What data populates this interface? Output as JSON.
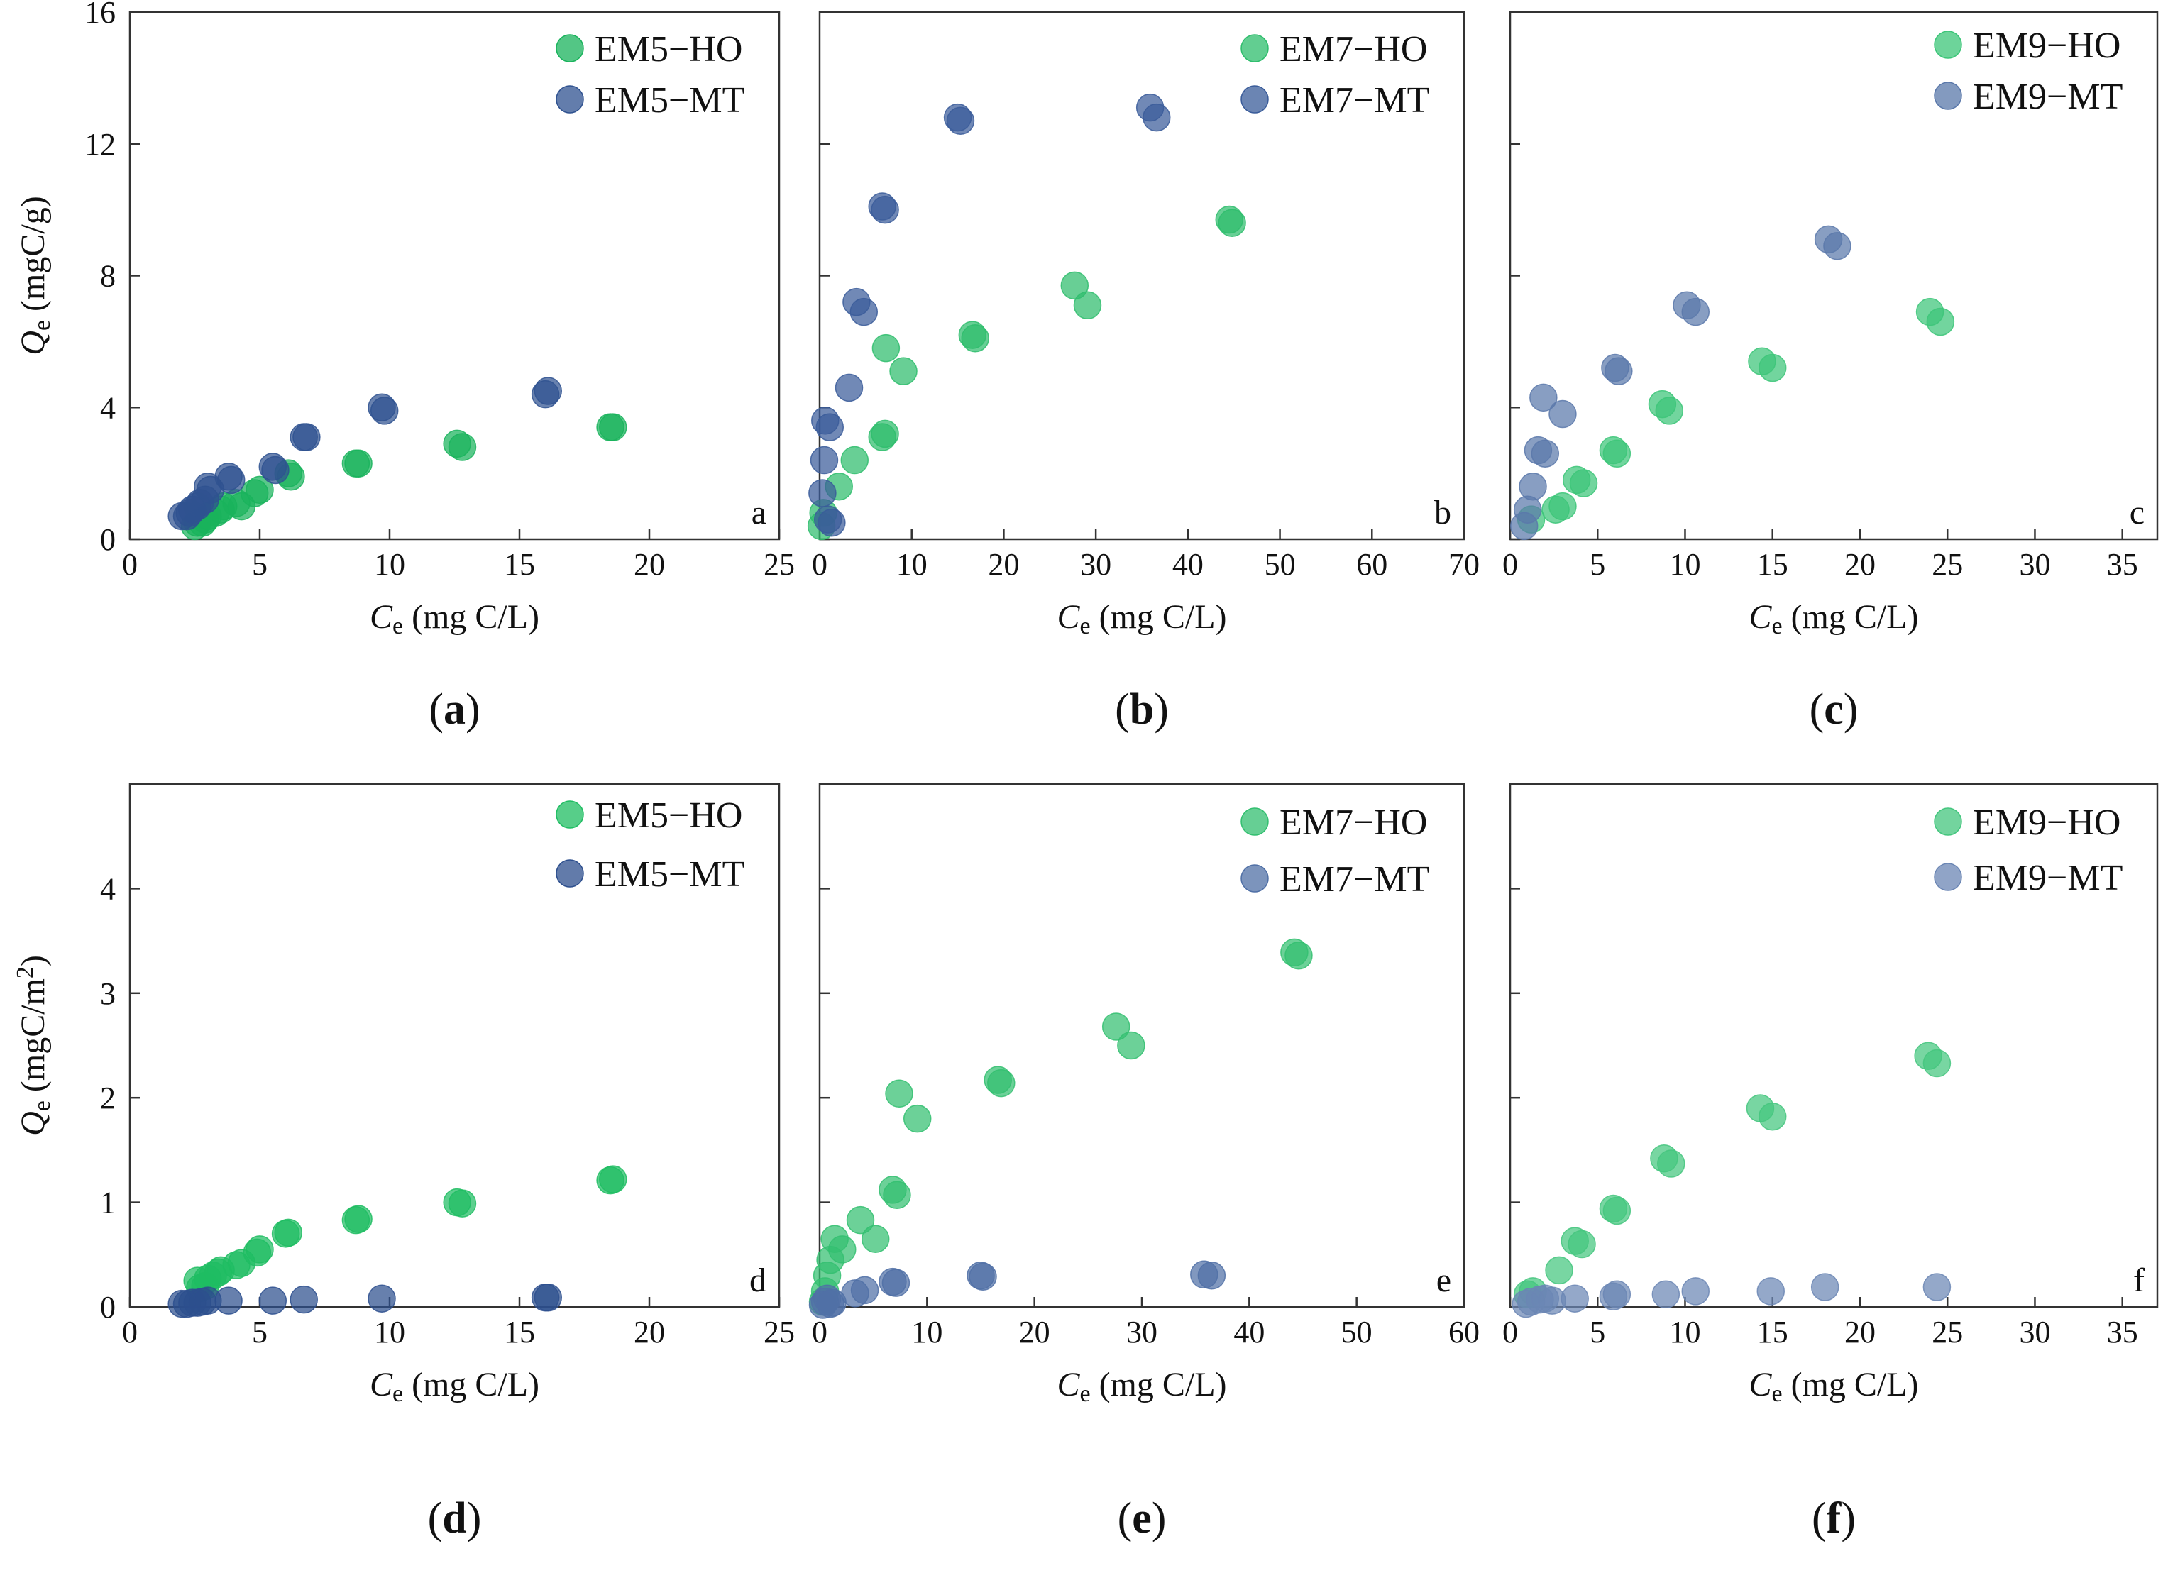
{
  "figure": {
    "colors": {
      "ho_em5": "#19b35c",
      "mt_em5": "#2f5290",
      "ho_em7": "#2ebd6c",
      "mt_em7": "#3a5c9a",
      "ho_em9": "#3cc578",
      "mt_em9": "#5a78aa",
      "ho_em5_area": "#1fbd62",
      "mt_em5_area": "#2d4f8e",
      "ho_em7_area": "#33bf70",
      "mt_em7_area": "#5070a6",
      "ho_em9_area": "#44c67e",
      "mt_em9_area": "#6b86b4"
    }
  },
  "chart_data": [
    {
      "type": "scatter",
      "panel": "a",
      "caption": "a",
      "corner_label": "a",
      "ylabel_main": "Q",
      "ylabel_sub": "e",
      "ylabel_unit": " (mgC/g)",
      "xlabel_main": "C",
      "xlabel_sub": "e",
      "xlabel_unit": " (mg C/L)",
      "xlim": [
        0,
        25
      ],
      "ylim": [
        0,
        16
      ],
      "xticks": [
        0,
        5,
        10,
        15,
        20,
        25
      ],
      "yticks": [
        0,
        4,
        8,
        12,
        16
      ],
      "series": [
        {
          "name": "EM5−HO",
          "color_key": "ho_em5",
          "x": [
            2.6,
            2.9,
            3.3,
            3.6,
            4.1,
            4.8,
            6.1,
            8.7,
            12.6,
            18.5,
            2.5,
            2.8,
            3.0,
            3.5,
            4.3,
            5.0,
            6.2,
            8.8,
            12.8,
            18.6
          ],
          "y": [
            0.5,
            0.6,
            0.8,
            1.0,
            1.1,
            1.4,
            2.0,
            2.3,
            2.9,
            3.4,
            0.4,
            0.5,
            0.7,
            0.9,
            1.0,
            1.5,
            1.9,
            2.3,
            2.8,
            3.4
          ]
        },
        {
          "name": "EM5−MT",
          "color_key": "mt_em5",
          "x": [
            2.0,
            2.3,
            2.6,
            2.9,
            3.1,
            3.9,
            5.5,
            6.7,
            9.7,
            16.0,
            2.2,
            2.4,
            2.7,
            3.0,
            3.8,
            5.6,
            6.8,
            9.8,
            16.1
          ],
          "y": [
            0.7,
            0.8,
            1.0,
            1.2,
            1.5,
            1.8,
            2.2,
            3.1,
            4.0,
            4.4,
            0.7,
            0.9,
            1.1,
            1.6,
            1.9,
            2.1,
            3.1,
            3.9,
            4.5
          ]
        }
      ]
    },
    {
      "type": "scatter",
      "panel": "b",
      "caption": "b",
      "corner_label": "b",
      "xlabel_main": "C",
      "xlabel_sub": "e",
      "xlabel_unit": " (mg C/L)",
      "xlim": [
        0,
        70
      ],
      "ylim": [
        0,
        16
      ],
      "xticks": [
        0,
        10,
        20,
        30,
        40,
        50,
        60,
        70
      ],
      "yticks": [
        0,
        4,
        8,
        12,
        16
      ],
      "series": [
        {
          "name": "EM7−HO",
          "color_key": "ho_em7",
          "x": [
            0.2,
            0.4,
            2.1,
            3.8,
            6.8,
            7.1,
            7.2,
            9.1,
            16.6,
            16.9,
            27.7,
            29.1,
            44.5,
            44.8
          ],
          "y": [
            0.4,
            0.8,
            1.6,
            2.4,
            3.1,
            3.2,
            5.8,
            5.1,
            6.2,
            6.1,
            7.7,
            7.1,
            9.7,
            9.6
          ]
        },
        {
          "name": "EM7−MT",
          "color_key": "mt_em7",
          "x": [
            0.3,
            0.5,
            0.6,
            0.9,
            1.1,
            1.3,
            3.2,
            4.0,
            4.8,
            6.8,
            7.1,
            15.0,
            15.3,
            35.9,
            36.6
          ],
          "y": [
            1.4,
            2.4,
            3.6,
            0.6,
            3.4,
            0.5,
            4.6,
            7.2,
            6.9,
            10.1,
            10.0,
            12.8,
            12.7,
            13.1,
            12.8
          ]
        }
      ]
    },
    {
      "type": "scatter",
      "panel": "c",
      "caption": "c",
      "corner_label": "c",
      "xlabel_main": "C",
      "xlabel_sub": "e",
      "xlabel_unit": " (mg C/L)",
      "xlim": [
        0,
        37
      ],
      "ylim": [
        0,
        16
      ],
      "xticks": [
        0,
        5,
        10,
        15,
        20,
        25,
        30,
        35
      ],
      "yticks": [
        0,
        4,
        8,
        12,
        16
      ],
      "series": [
        {
          "name": "EM9−HO",
          "color_key": "ho_em9",
          "x": [
            1.2,
            2.6,
            3.0,
            3.8,
            4.2,
            5.9,
            6.1,
            8.7,
            9.1,
            14.4,
            15.0,
            24.0,
            24.6
          ],
          "y": [
            0.6,
            0.9,
            1.0,
            1.8,
            1.7,
            2.7,
            2.6,
            4.1,
            3.9,
            5.4,
            5.2,
            6.9,
            6.6
          ]
        },
        {
          "name": "EM9−MT",
          "color_key": "mt_em9",
          "x": [
            0.8,
            1.0,
            1.3,
            1.6,
            1.9,
            2.0,
            3.0,
            6.0,
            6.2,
            10.1,
            10.6,
            18.2,
            18.7
          ],
          "y": [
            0.4,
            0.9,
            1.6,
            2.7,
            4.3,
            2.6,
            3.8,
            5.2,
            5.1,
            7.1,
            6.9,
            9.1,
            8.9
          ]
        }
      ]
    },
    {
      "type": "scatter",
      "panel": "d",
      "caption": "d",
      "corner_label": "d",
      "ylabel_main": "Q",
      "ylabel_sub": "e",
      "ylabel_unit": " (mgC/m",
      "ylabel_sup": "2",
      "ylabel_close": ")",
      "xlabel_main": "C",
      "xlabel_sub": "e",
      "xlabel_unit": " (mg C/L)",
      "xlim": [
        0,
        25
      ],
      "ylim": [
        0,
        5
      ],
      "xticks": [
        0,
        5,
        10,
        15,
        20,
        25
      ],
      "yticks": [
        0,
        1,
        2,
        3,
        4
      ],
      "series": [
        {
          "name": "EM5−HO",
          "color_key": "ho_em5_area",
          "x": [
            2.6,
            2.9,
            3.2,
            3.5,
            4.1,
            4.9,
            6.0,
            8.7,
            12.6,
            18.5,
            2.7,
            3.0,
            3.4,
            4.3,
            5.0,
            6.1,
            8.8,
            12.8,
            18.6
          ],
          "y": [
            0.25,
            0.2,
            0.3,
            0.35,
            0.4,
            0.52,
            0.7,
            0.83,
            1.0,
            1.21,
            0.18,
            0.27,
            0.33,
            0.42,
            0.55,
            0.71,
            0.84,
            0.99,
            1.22
          ]
        },
        {
          "name": "EM5−MT",
          "color_key": "mt_em5_area",
          "x": [
            2.0,
            2.2,
            2.4,
            2.6,
            2.8,
            3.0,
            3.8,
            5.5,
            6.7,
            9.7,
            16.0,
            16.1
          ],
          "y": [
            0.03,
            0.03,
            0.04,
            0.04,
            0.05,
            0.06,
            0.06,
            0.06,
            0.07,
            0.08,
            0.09,
            0.09
          ]
        }
      ]
    },
    {
      "type": "scatter",
      "panel": "e",
      "caption": "e",
      "corner_label": "e",
      "xlabel_main": "C",
      "xlabel_sub": "e",
      "xlabel_unit": " (mg C/L)",
      "xlim": [
        0,
        60
      ],
      "ylim": [
        0,
        5
      ],
      "xticks": [
        0,
        10,
        20,
        30,
        40,
        50,
        60
      ],
      "yticks": [
        0,
        1,
        2,
        3,
        4
      ],
      "series": [
        {
          "name": "EM7−HO",
          "color_key": "ho_em7_area",
          "x": [
            0.3,
            0.5,
            0.7,
            1.0,
            1.4,
            2.1,
            3.8,
            5.2,
            6.8,
            7.2,
            7.4,
            9.1,
            16.6,
            16.9,
            27.6,
            29.0,
            44.2,
            44.6
          ],
          "y": [
            0.05,
            0.15,
            0.3,
            0.45,
            0.65,
            0.55,
            0.83,
            0.65,
            1.12,
            1.07,
            2.04,
            1.8,
            2.17,
            2.14,
            2.68,
            2.5,
            3.39,
            3.36
          ]
        },
        {
          "name": "EM7−MT",
          "color_key": "mt_em7_area",
          "x": [
            0.3,
            0.5,
            0.7,
            1.0,
            1.2,
            3.3,
            4.2,
            6.8,
            7.1,
            15.0,
            15.2,
            35.8,
            36.5
          ],
          "y": [
            0.02,
            0.05,
            0.08,
            0.03,
            0.04,
            0.13,
            0.16,
            0.24,
            0.23,
            0.3,
            0.29,
            0.31,
            0.3
          ]
        }
      ]
    },
    {
      "type": "scatter",
      "panel": "f",
      "caption": "f",
      "corner_label": "f",
      "xlabel_main": "C",
      "xlabel_sub": "e",
      "xlabel_unit": " (mg C/L)",
      "xlim": [
        0,
        37
      ],
      "ylim": [
        0,
        5
      ],
      "xticks": [
        0,
        5,
        10,
        15,
        20,
        25,
        30,
        35
      ],
      "yticks": [
        0,
        1,
        2,
        3,
        4
      ],
      "series": [
        {
          "name": "EM9−HO",
          "color_key": "ho_em9_area",
          "x": [
            1.0,
            1.3,
            2.8,
            3.7,
            4.1,
            5.9,
            6.1,
            8.8,
            9.2,
            14.3,
            15.0,
            23.9,
            24.4
          ],
          "y": [
            0.12,
            0.15,
            0.35,
            0.63,
            0.6,
            0.94,
            0.92,
            1.42,
            1.37,
            1.9,
            1.82,
            2.4,
            2.33
          ]
        },
        {
          "name": "EM9−MT",
          "color_key": "mt_em9_area",
          "x": [
            0.9,
            1.2,
            1.7,
            2.0,
            2.4,
            3.7,
            5.9,
            6.1,
            8.9,
            10.6,
            14.9,
            18.0,
            24.4
          ],
          "y": [
            0.03,
            0.05,
            0.07,
            0.08,
            0.06,
            0.08,
            0.1,
            0.12,
            0.12,
            0.15,
            0.15,
            0.19,
            0.19
          ]
        }
      ]
    }
  ]
}
